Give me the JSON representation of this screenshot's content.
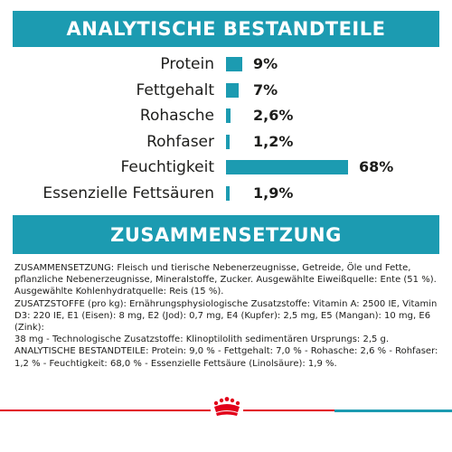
{
  "sections": {
    "analyse_title": "ANALYTISCHE BESTANDTEILE",
    "zusammen_title": "ZUSAMMENSETZUNG"
  },
  "nutrients": [
    {
      "label": "Protein",
      "value_text": "9%",
      "percent": 9
    },
    {
      "label": "Fettgehalt",
      "value_text": "7%",
      "percent": 7
    },
    {
      "label": "Rohasche",
      "value_text": "2,6%",
      "percent": 2.6
    },
    {
      "label": "Rohfaser",
      "value_text": "1,2%",
      "percent": 1.2
    },
    {
      "label": "Feuchtigkeit",
      "value_text": "68%",
      "percent": 68
    },
    {
      "label": "Essenzielle Fettsäuren",
      "value_text": "1,9%",
      "percent": 1.9
    }
  ],
  "composition_lines": [
    "ZUSAMMENSETZUNG: Fleisch und tierische Nebenerzeugnisse, Getreide, Öle und Fette,",
    "pflanzliche Nebenerzeugnisse, Mineralstoffe, Zucker. Ausgewählte Eiweißquelle: Ente (51 %).",
    "Ausgewählte Kohlenhydratquelle: Reis (15 %).",
    "ZUSATZSTOFFE (pro kg): Ernährungsphysiologische Zusatzstoffe: Vitamin A: 2500 IE, Vitamin",
    "D3: 220 IE, E1 (Eisen): 8 mg, E2 (Jod): 0,7 mg, E4 (Kupfer): 2,5 mg, E5 (Mangan): 10 mg, E6 (Zink):",
    "38 mg - Technologische Zusatzstoffe: Klinoptilolith sedimentären Ursprungs: 2,5 g.",
    "ANALYTISCHE BESTANDTEILE: Protein: 9,0 % - Fettgehalt: 7,0 % - Rohasche: 2,6 % - Rohfaser:",
    "1,2 % - Feuchtigkeit: 68,0 % - Essenzielle Fettsäure (Linolsäure): 1,9 %."
  ],
  "colors": {
    "accent": "#1c9bb1",
    "brand_red": "#e2001a",
    "text": "#1d1d1b"
  },
  "logo": {
    "icon": "royal-canin-crown-logo"
  }
}
